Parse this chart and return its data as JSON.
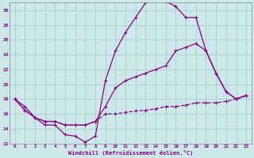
{
  "xlabel": "Windchill (Refroidissement éolien,°C)",
  "x_ticks": [
    0,
    1,
    2,
    3,
    4,
    5,
    6,
    7,
    8,
    9,
    10,
    11,
    12,
    13,
    14,
    15,
    16,
    17,
    18,
    19,
    20,
    21,
    22,
    23
  ],
  "ylim": [
    12,
    31
  ],
  "yticks": [
    12,
    14,
    16,
    18,
    20,
    22,
    24,
    26,
    28,
    30
  ],
  "background_color": "#cce8e8",
  "line_color": "#880088",
  "grid_color": "#aacccc",
  "line1_x": [
    0,
    1,
    2,
    3,
    4,
    5,
    6,
    7,
    8,
    9,
    10,
    11,
    12,
    13,
    14,
    15,
    16,
    17,
    18,
    19,
    20,
    21,
    22,
    23
  ],
  "line1_y": [
    18.0,
    17.0,
    15.5,
    14.5,
    14.5,
    13.2,
    13.0,
    12.2,
    13.0,
    20.5,
    24.5,
    27.0,
    29.0,
    31.0,
    31.5,
    31.2,
    30.5,
    29.0,
    29.0,
    24.5,
    21.5,
    19.0,
    18.0,
    18.5
  ],
  "line2_x": [
    0,
    1,
    2,
    3,
    4,
    5,
    6,
    7,
    8,
    9,
    10,
    11,
    12,
    13,
    14,
    15,
    16,
    17,
    18,
    19,
    20,
    21,
    22,
    23
  ],
  "line2_y": [
    18.0,
    16.5,
    15.5,
    15.0,
    15.0,
    14.5,
    14.5,
    14.5,
    15.0,
    17.0,
    19.5,
    20.5,
    21.0,
    21.5,
    22.0,
    22.5,
    24.5,
    25.0,
    25.5,
    24.5,
    21.5,
    19.0,
    18.0,
    18.5
  ],
  "line3_x": [
    0,
    1,
    2,
    3,
    4,
    5,
    6,
    7,
    8,
    9,
    10,
    11,
    12,
    13,
    14,
    15,
    16,
    17,
    18,
    19,
    20,
    21,
    22,
    23
  ],
  "line3_y": [
    18.0,
    16.5,
    15.5,
    15.0,
    15.0,
    14.5,
    14.5,
    14.5,
    15.0,
    16.0,
    16.0,
    16.2,
    16.4,
    16.5,
    16.7,
    17.0,
    17.0,
    17.2,
    17.5,
    17.5,
    17.5,
    17.7,
    18.0,
    18.5
  ]
}
